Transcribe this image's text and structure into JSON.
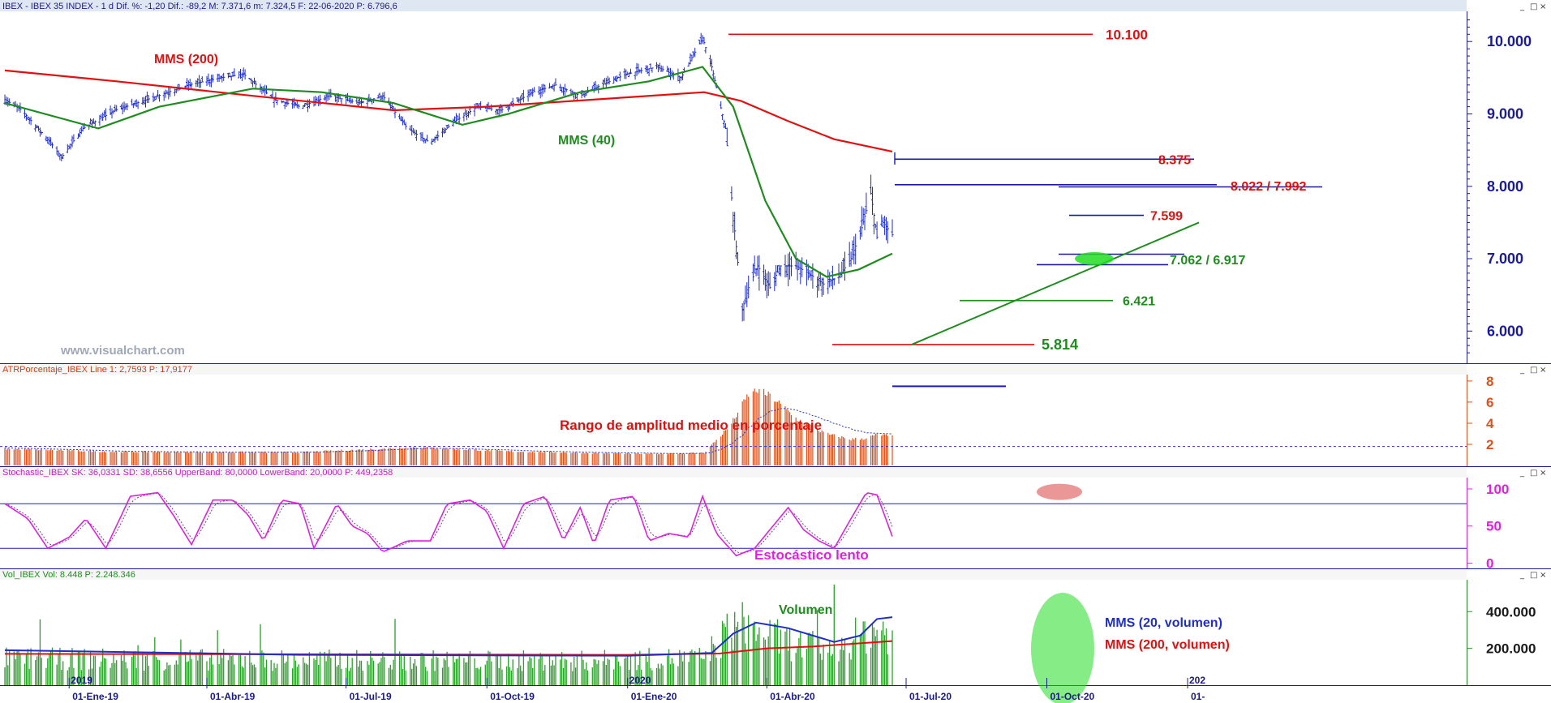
{
  "headers": {
    "price": "IBEX - IBEX 35 INDEX - 1 d Dif. %: -1,20 Dif.: -89,2 M: 7.371,6 m: 7.324,5 F: 22-06-2020 P: 6.796,6",
    "atr": "ATRPorcentaje_IBEX Line 1: 2,7593 P: 17,9177",
    "stoch": "Stochastic_IBEX SK: 36,0331 SD: 38,6556 UpperBand: 80,0000 LowerBand: 20,0000 P: 449,2358",
    "vol": "Vol_IBEX Vol: 8.448 P: 2.248.346"
  },
  "watermark": "www.visualchart.com",
  "window_controls": [
    "_",
    "□",
    "×"
  ],
  "colors": {
    "price_bars": "#1f2ec8",
    "sma200": "#e01010",
    "sma40": "#1e8c1e",
    "atr_bars": "#e0501a",
    "stoch": "#e020e0",
    "vol_bars": "#2aa02a",
    "vol_sma20": "#1f2ec8",
    "vol_sma200": "#e01010",
    "axis_blue": "#1a1aa0",
    "annotation_red": "#e01010",
    "annotation_green": "#1e8c1e"
  },
  "chart_data": [
    {
      "type": "candlestick",
      "panel": "price",
      "title": "IBEX - IBEX 35 INDEX",
      "ylim": [
        5600,
        10350
      ],
      "y_ticks": [
        "6.000",
        "7.000",
        "8.000",
        "9.000",
        "10.000"
      ],
      "y_tick_values": [
        6000,
        7000,
        8000,
        9000,
        10000
      ],
      "x_ticks": [
        "01-Ene-19",
        "01-Abr-19",
        "01-Jul-19",
        "01-Oct-19",
        "01-Ene-20",
        "01-Abr-20",
        "01-Jul-20",
        "01-Oct-20",
        "01-"
      ],
      "year_markers": [
        "2019",
        "2020",
        "202"
      ],
      "close_path": [
        [
          "2018-11-20",
          9200
        ],
        [
          "2018-12-01",
          9050
        ],
        [
          "2018-12-20",
          8600
        ],
        [
          "2018-12-27",
          8400
        ],
        [
          "2019-01-10",
          8800
        ],
        [
          "2019-01-31",
          9050
        ],
        [
          "2019-02-28",
          9250
        ],
        [
          "2019-03-20",
          9400
        ],
        [
          "2019-04-10",
          9500
        ],
        [
          "2019-04-25",
          9550
        ],
        [
          "2019-05-15",
          9200
        ],
        [
          "2019-06-01",
          9100
        ],
        [
          "2019-06-20",
          9250
        ],
        [
          "2019-07-10",
          9150
        ],
        [
          "2019-07-25",
          9250
        ],
        [
          "2019-08-10",
          8800
        ],
        [
          "2019-08-25",
          8600
        ],
        [
          "2019-09-10",
          8900
        ],
        [
          "2019-09-25",
          9100
        ],
        [
          "2019-10-10",
          9050
        ],
        [
          "2019-10-31",
          9300
        ],
        [
          "2019-11-15",
          9400
        ],
        [
          "2019-12-01",
          9250
        ],
        [
          "2019-12-15",
          9400
        ],
        [
          "2019-12-31",
          9550
        ],
        [
          "2020-01-20",
          9650
        ],
        [
          "2020-02-05",
          9500
        ],
        [
          "2020-02-19",
          10050
        ],
        [
          "2020-02-25",
          9650
        ],
        [
          "2020-03-05",
          8800
        ],
        [
          "2020-03-10",
          7600
        ],
        [
          "2020-03-16",
          6300
        ],
        [
          "2020-03-20",
          6600
        ],
        [
          "2020-03-26",
          6900
        ],
        [
          "2020-04-03",
          6600
        ],
        [
          "2020-04-10",
          6900
        ],
        [
          "2020-04-20",
          6900
        ],
        [
          "2020-04-28",
          6800
        ],
        [
          "2020-05-08",
          6650
        ],
        [
          "2020-05-18",
          6750
        ],
        [
          "2020-05-26",
          7000
        ],
        [
          "2020-06-01",
          7350
        ],
        [
          "2020-06-08",
          7900
        ],
        [
          "2020-06-12",
          7300
        ],
        [
          "2020-06-16",
          7500
        ],
        [
          "2020-06-22",
          7330
        ]
      ],
      "series": [
        {
          "name": "MMS (200)",
          "values": [
            [
              "2018-11-20",
              9600
            ],
            [
              "2019-02-01",
              9450
            ],
            [
              "2019-05-01",
              9250
            ],
            [
              "2019-08-01",
              9050
            ],
            [
              "2019-10-01",
              9100
            ],
            [
              "2020-01-01",
              9230
            ],
            [
              "2020-02-20",
              9300
            ],
            [
              "2020-03-15",
              9180
            ],
            [
              "2020-04-15",
              8900
            ],
            [
              "2020-05-15",
              8650
            ],
            [
              "2020-06-22",
              8480
            ]
          ]
        },
        {
          "name": "MMS (40)",
          "values": [
            [
              "2018-11-20",
              9150
            ],
            [
              "2019-01-20",
              8800
            ],
            [
              "2019-03-01",
              9100
            ],
            [
              "2019-05-01",
              9350
            ],
            [
              "2019-06-15",
              9300
            ],
            [
              "2019-08-01",
              9150
            ],
            [
              "2019-09-15",
              8850
            ],
            [
              "2019-10-15",
              9000
            ],
            [
              "2019-12-01",
              9300
            ],
            [
              "2020-01-15",
              9450
            ],
            [
              "2020-02-19",
              9650
            ],
            [
              "2020-03-10",
              9100
            ],
            [
              "2020-03-31",
              7800
            ],
            [
              "2020-04-20",
              7000
            ],
            [
              "2020-05-10",
              6750
            ],
            [
              "2020-05-31",
              6850
            ],
            [
              "2020-06-22",
              7070
            ]
          ]
        }
      ],
      "annotations": [
        {
          "text": "10.100",
          "value": 10100,
          "color": "red"
        },
        {
          "text": "8.375",
          "value": 8375,
          "color": "red"
        },
        {
          "text": "8.022 / 7.992",
          "value": 8007,
          "color": "red"
        },
        {
          "text": "7.599",
          "value": 7599,
          "color": "red"
        },
        {
          "text": "7.062 / 6.917",
          "value": 6990,
          "color": "green"
        },
        {
          "text": "6.421",
          "value": 6421,
          "color": "green"
        },
        {
          "text": "5.814",
          "value": 5814,
          "color": "green"
        },
        {
          "text": "MMS (200)",
          "color": "red"
        },
        {
          "text": "MMS (40)",
          "color": "green"
        }
      ]
    },
    {
      "type": "bar",
      "panel": "atr",
      "ylim": [
        0,
        8.3
      ],
      "y_ticks": [
        "2",
        "4",
        "6",
        "8"
      ],
      "y_tick_values": [
        2,
        4,
        6,
        8
      ],
      "reference_line": 1.8,
      "profile": [
        [
          "2018-11-20",
          1.6
        ],
        [
          "2019-02-01",
          1.3
        ],
        [
          "2019-06-01",
          1.25
        ],
        [
          "2019-08-15",
          1.75
        ],
        [
          "2019-10-15",
          1.35
        ],
        [
          "2020-01-15",
          1.1
        ],
        [
          "2020-02-20",
          1.2
        ],
        [
          "2020-03-08",
          3.8
        ],
        [
          "2020-03-20",
          6.8
        ],
        [
          "2020-03-26",
          7.2
        ],
        [
          "2020-04-05",
          6.5
        ],
        [
          "2020-04-20",
          4.5
        ],
        [
          "2020-05-10",
          3.0
        ],
        [
          "2020-05-26",
          2.5
        ],
        [
          "2020-06-05",
          2.6
        ],
        [
          "2020-06-12",
          2.95
        ],
        [
          "2020-06-22",
          2.76
        ]
      ],
      "annotations": [
        {
          "text": "Rango de amplitud medio en porcentaje",
          "color": "red"
        }
      ]
    },
    {
      "type": "line",
      "panel": "stochastic",
      "ylim": [
        -6,
        112
      ],
      "y_ticks": [
        "0",
        "50",
        "100"
      ],
      "y_tick_values": [
        0,
        50,
        100
      ],
      "bands": [
        80,
        20
      ],
      "series": [
        {
          "name": "SK",
          "values": [
            [
              "2018-11-20",
              80
            ],
            [
              "2018-12-05",
              60
            ],
            [
              "2018-12-18",
              20
            ],
            [
              "2019-01-01",
              35
            ],
            [
              "2019-01-12",
              60
            ],
            [
              "2019-01-25",
              20
            ],
            [
              "2019-02-10",
              90
            ],
            [
              "2019-02-28",
              95
            ],
            [
              "2019-03-10",
              65
            ],
            [
              "2019-03-22",
              25
            ],
            [
              "2019-04-05",
              85
            ],
            [
              "2019-04-18",
              85
            ],
            [
              "2019-04-28",
              65
            ],
            [
              "2019-05-08",
              30
            ],
            [
              "2019-05-20",
              85
            ],
            [
              "2019-06-01",
              80
            ],
            [
              "2019-06-10",
              20
            ],
            [
              "2019-06-25",
              80
            ],
            [
              "2019-07-05",
              50
            ],
            [
              "2019-07-15",
              40
            ],
            [
              "2019-07-25",
              15
            ],
            [
              "2019-08-10",
              30
            ],
            [
              "2019-08-25",
              30
            ],
            [
              "2019-09-05",
              80
            ],
            [
              "2019-09-20",
              85
            ],
            [
              "2019-10-01",
              70
            ],
            [
              "2019-10-12",
              20
            ],
            [
              "2019-10-25",
              80
            ],
            [
              "2019-11-08",
              90
            ],
            [
              "2019-11-20",
              30
            ],
            [
              "2019-12-01",
              75
            ],
            [
              "2019-12-10",
              25
            ],
            [
              "2019-12-20",
              85
            ],
            [
              "2020-01-05",
              90
            ],
            [
              "2020-01-15",
              30
            ],
            [
              "2020-01-28",
              40
            ],
            [
              "2020-02-10",
              35
            ],
            [
              "2020-02-19",
              90
            ],
            [
              "2020-02-28",
              40
            ],
            [
              "2020-03-12",
              10
            ],
            [
              "2020-03-24",
              20
            ],
            [
              "2020-04-05",
              50
            ],
            [
              "2020-04-15",
              75
            ],
            [
              "2020-04-25",
              45
            ],
            [
              "2020-05-05",
              30
            ],
            [
              "2020-05-15",
              20
            ],
            [
              "2020-05-26",
              60
            ],
            [
              "2020-06-05",
              95
            ],
            [
              "2020-06-12",
              92
            ],
            [
              "2020-06-22",
              36
            ]
          ]
        }
      ],
      "annotations": [
        {
          "text": "Estocástico lento",
          "color": "magenta"
        }
      ]
    },
    {
      "type": "bar",
      "panel": "volume",
      "ylim": [
        0,
        560000
      ],
      "y_ticks": [
        "200.000",
        "400.000"
      ],
      "y_tick_values": [
        200000,
        400000
      ],
      "profile": [
        [
          "2018-11-20",
          180000
        ],
        [
          "2019-06-01",
          170000
        ],
        [
          "2019-12-01",
          165000
        ],
        [
          "2020-02-20",
          185000
        ],
        [
          "2020-03-01",
          300000
        ],
        [
          "2020-03-12",
          420000
        ],
        [
          "2020-03-25",
          360000
        ],
        [
          "2020-04-15",
          290000
        ],
        [
          "2020-05-10",
          240000
        ],
        [
          "2020-05-31",
          330000
        ],
        [
          "2020-06-10",
          390000
        ],
        [
          "2020-06-22",
          360000
        ]
      ],
      "series": [
        {
          "name": "MMS (20, volumen)",
          "values": [
            [
              "2018-11-20",
              190000
            ],
            [
              "2019-06-01",
              165000
            ],
            [
              "2020-01-01",
              160000
            ],
            [
              "2020-02-25",
              175000
            ],
            [
              "2020-03-10",
              280000
            ],
            [
              "2020-03-25",
              340000
            ],
            [
              "2020-04-15",
              310000
            ],
            [
              "2020-05-15",
              235000
            ],
            [
              "2020-06-01",
              270000
            ],
            [
              "2020-06-12",
              360000
            ],
            [
              "2020-06-22",
              370000
            ]
          ]
        },
        {
          "name": "MMS (200, volumen)",
          "values": [
            [
              "2018-11-20",
              170000
            ],
            [
              "2019-06-01",
              168000
            ],
            [
              "2020-01-01",
              165000
            ],
            [
              "2020-03-01",
              172000
            ],
            [
              "2020-04-01",
              200000
            ],
            [
              "2020-05-01",
              210000
            ],
            [
              "2020-06-22",
              240000
            ]
          ]
        }
      ],
      "annotations": [
        {
          "text": "Volumen",
          "color": "green"
        },
        {
          "text": "MMS (20, volumen)",
          "color": "blue"
        },
        {
          "text": "MMS (200, volumen)",
          "color": "red"
        }
      ]
    }
  ]
}
